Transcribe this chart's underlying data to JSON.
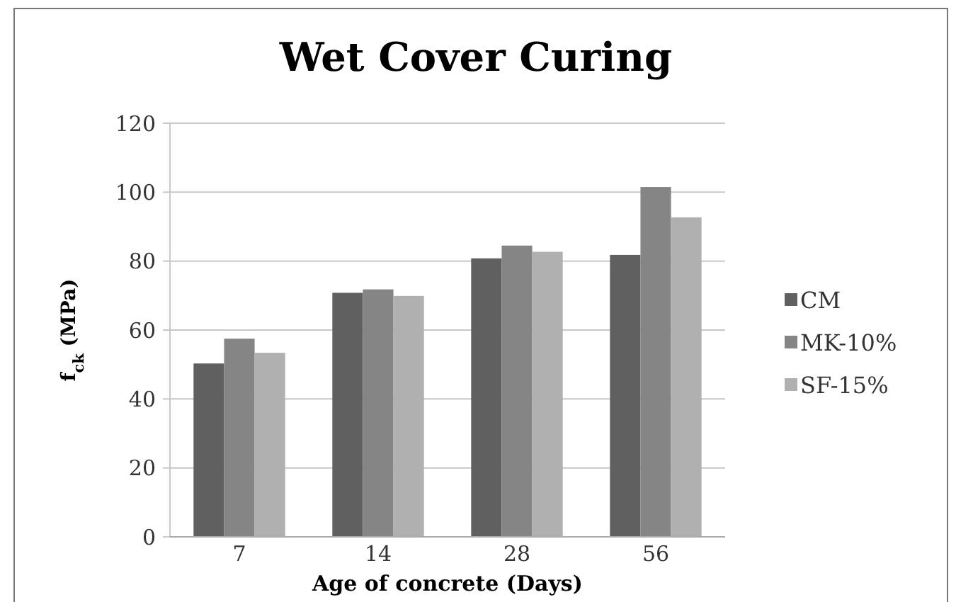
{
  "chart_data": {
    "type": "bar",
    "title": "Wet Cover Curing",
    "xlabel": "Age of concrete (Days)",
    "ylabel": "f$_{ck}$ (MPa)",
    "categories": [
      "7",
      "14",
      "28",
      "56"
    ],
    "series": [
      {
        "name": "CM",
        "color": "#606060",
        "values": [
          50.3,
          70.8,
          80.8,
          81.8
        ]
      },
      {
        "name": "MK-10%",
        "color": "#858585",
        "values": [
          57.5,
          71.8,
          84.5,
          101.5
        ]
      },
      {
        "name": "SF-15%",
        "color": "#b0b0b0",
        "values": [
          53.4,
          69.9,
          82.7,
          92.7
        ]
      }
    ],
    "ylim": [
      0,
      120
    ],
    "yticks": [
      0,
      20,
      40,
      60,
      80,
      100,
      120
    ],
    "grid": "y",
    "legend": "right"
  }
}
